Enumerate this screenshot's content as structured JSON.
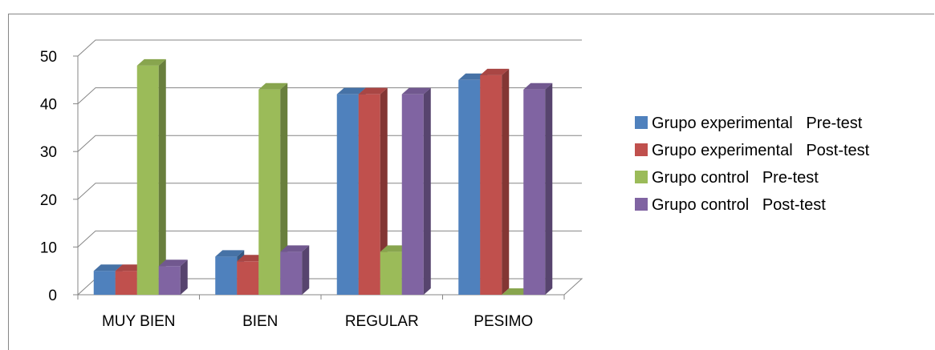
{
  "chart_data": {
    "type": "bar",
    "title": "",
    "xlabel": "",
    "ylabel": "",
    "ylim": [
      0,
      50
    ],
    "yticks": [
      0,
      10,
      20,
      30,
      40,
      50
    ],
    "grid": true,
    "legend_position": "right",
    "categories": [
      "MUY BIEN",
      "BIEN",
      "REGULAR",
      "PESIMO"
    ],
    "series": [
      {
        "name": "Grupo experimental   Pre-test",
        "color": "#4F81BD",
        "values": [
          5,
          8,
          42,
          45
        ]
      },
      {
        "name": "Grupo experimental   Post-test",
        "color": "#C0504D",
        "values": [
          5,
          7,
          42,
          46
        ]
      },
      {
        "name": "Grupo control   Pre-test",
        "color": "#9BBB59",
        "values": [
          48,
          43,
          9,
          0
        ]
      },
      {
        "name": "Grupo control   Post-test",
        "color": "#8064A2",
        "values": [
          6,
          9,
          42,
          43
        ]
      }
    ]
  }
}
